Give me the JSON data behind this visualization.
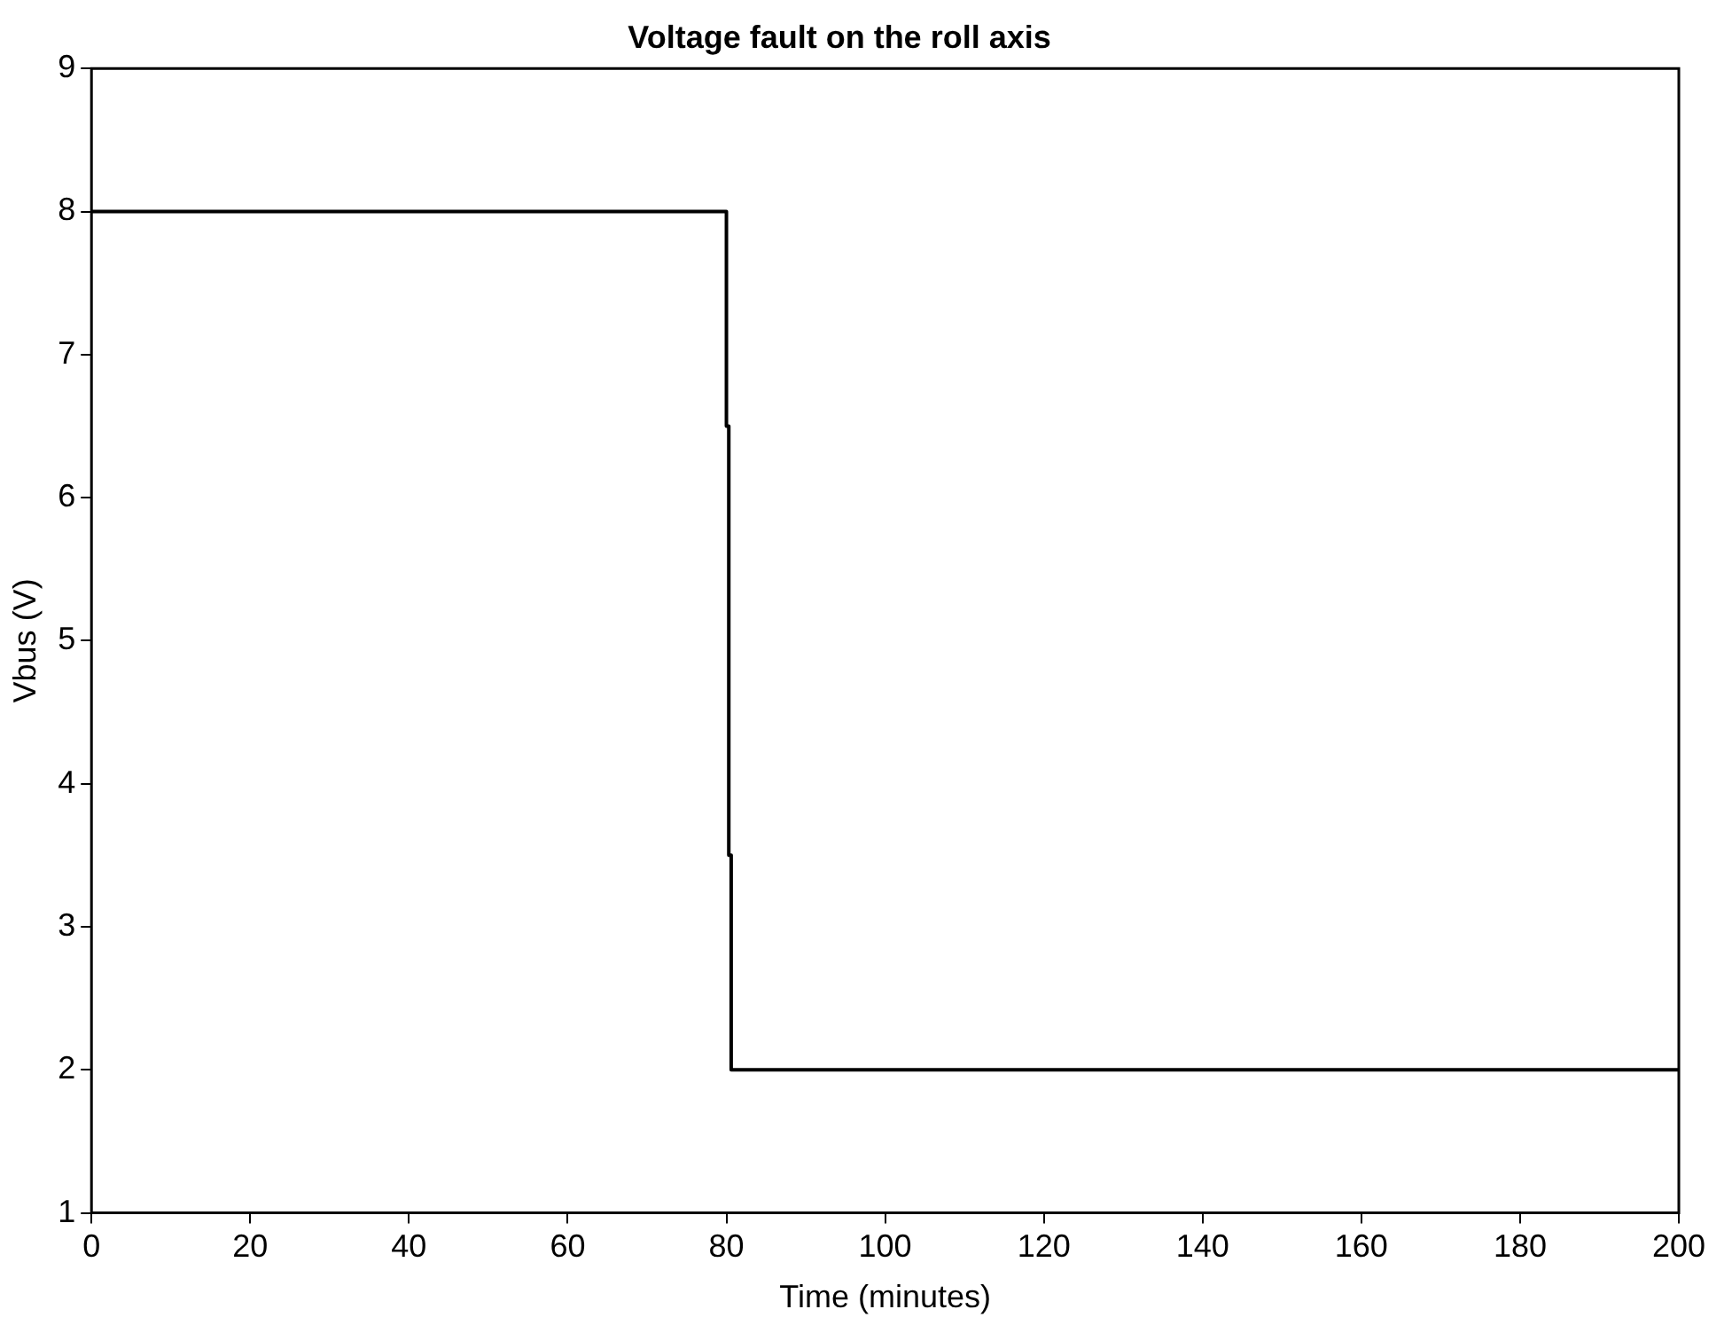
{
  "chart_data": {
    "type": "line",
    "title": "Voltage fault on the roll axis",
    "xlabel": "Time (minutes)",
    "ylabel": "Vbus (V)",
    "series": [
      {
        "color": "#000000",
        "x": [
          0,
          80,
          80,
          80.3,
          80.3,
          80.6,
          80.6,
          81,
          81,
          200
        ],
        "values": [
          8,
          8,
          6.5,
          6.5,
          3.5,
          3.5,
          2,
          2,
          2,
          2
        ]
      }
    ],
    "xlim": [
      0,
      200
    ],
    "xticks": [
      0,
      20,
      40,
      60,
      80,
      100,
      120,
      140,
      160,
      180,
      200
    ],
    "ylim": [
      1,
      9
    ],
    "yticks": [
      1,
      2,
      3,
      4,
      5,
      6,
      7,
      8,
      9
    ],
    "grid": false,
    "legend": false,
    "marker": "none",
    "line_style": "solid"
  }
}
